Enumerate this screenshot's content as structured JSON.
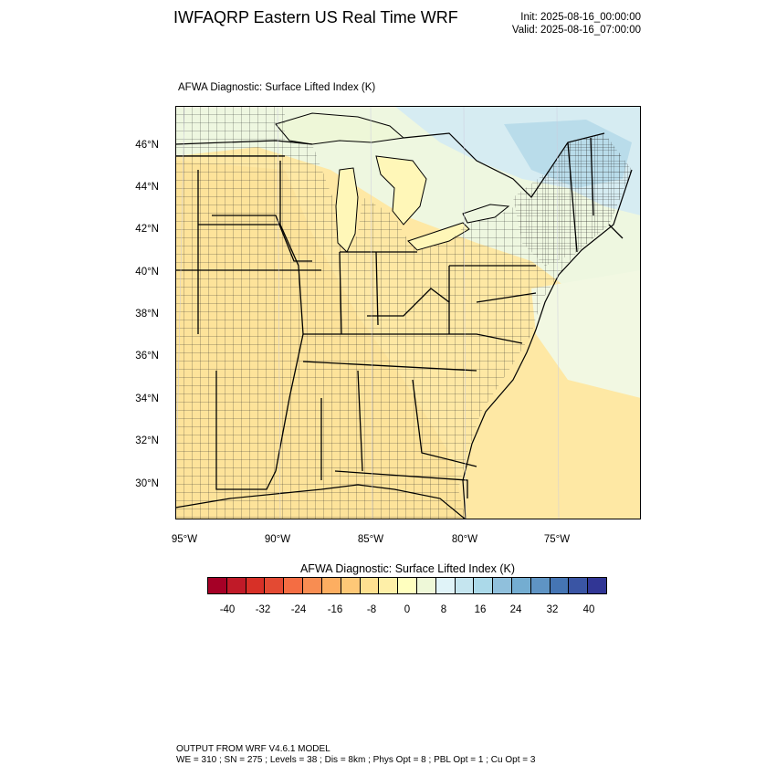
{
  "header": {
    "title": "IWFAQRP Eastern US Real Time WRF",
    "init": "Init: 2025-08-16_00:00:00",
    "valid": "Valid: 2025-08-16_07:00:00"
  },
  "map": {
    "subtitle": "AFWA Diagnostic: Surface Lifted Index   (K)",
    "lat_labels": [
      "46°N",
      "44°N",
      "42°N",
      "40°N",
      "38°N",
      "36°N",
      "34°N",
      "32°N",
      "30°N"
    ],
    "lon_labels": [
      "95°W",
      "90°W",
      "85°W",
      "80°W",
      "75°W"
    ]
  },
  "colorbar": {
    "title": "AFWA Diagnostic: Surface Lifted Index  (K)",
    "colors": [
      "#a50026",
      "#c01a28",
      "#d73027",
      "#e34a33",
      "#f46d43",
      "#f88d52",
      "#fdae61",
      "#fec877",
      "#fee090",
      "#feefa8",
      "#ffffbf",
      "#eef8d8",
      "#e0f3f8",
      "#c5e5ef",
      "#abd9e9",
      "#90c0dc",
      "#74add1",
      "#5f94c4",
      "#4575b4",
      "#3a55a4",
      "#313695"
    ],
    "ticks": [
      "-40",
      "-32",
      "-24",
      "-16",
      "-8",
      "0",
      "8",
      "16",
      "24",
      "32",
      "40"
    ]
  },
  "footer": {
    "line1": "OUTPUT FROM WRF V4.6.1 MODEL",
    "line2": "WE = 310 ; SN = 275 ; Levels = 38 ; Dis = 8km ; Phys Opt = 8 ; PBL Opt = 1 ; Cu Opt = 3"
  }
}
